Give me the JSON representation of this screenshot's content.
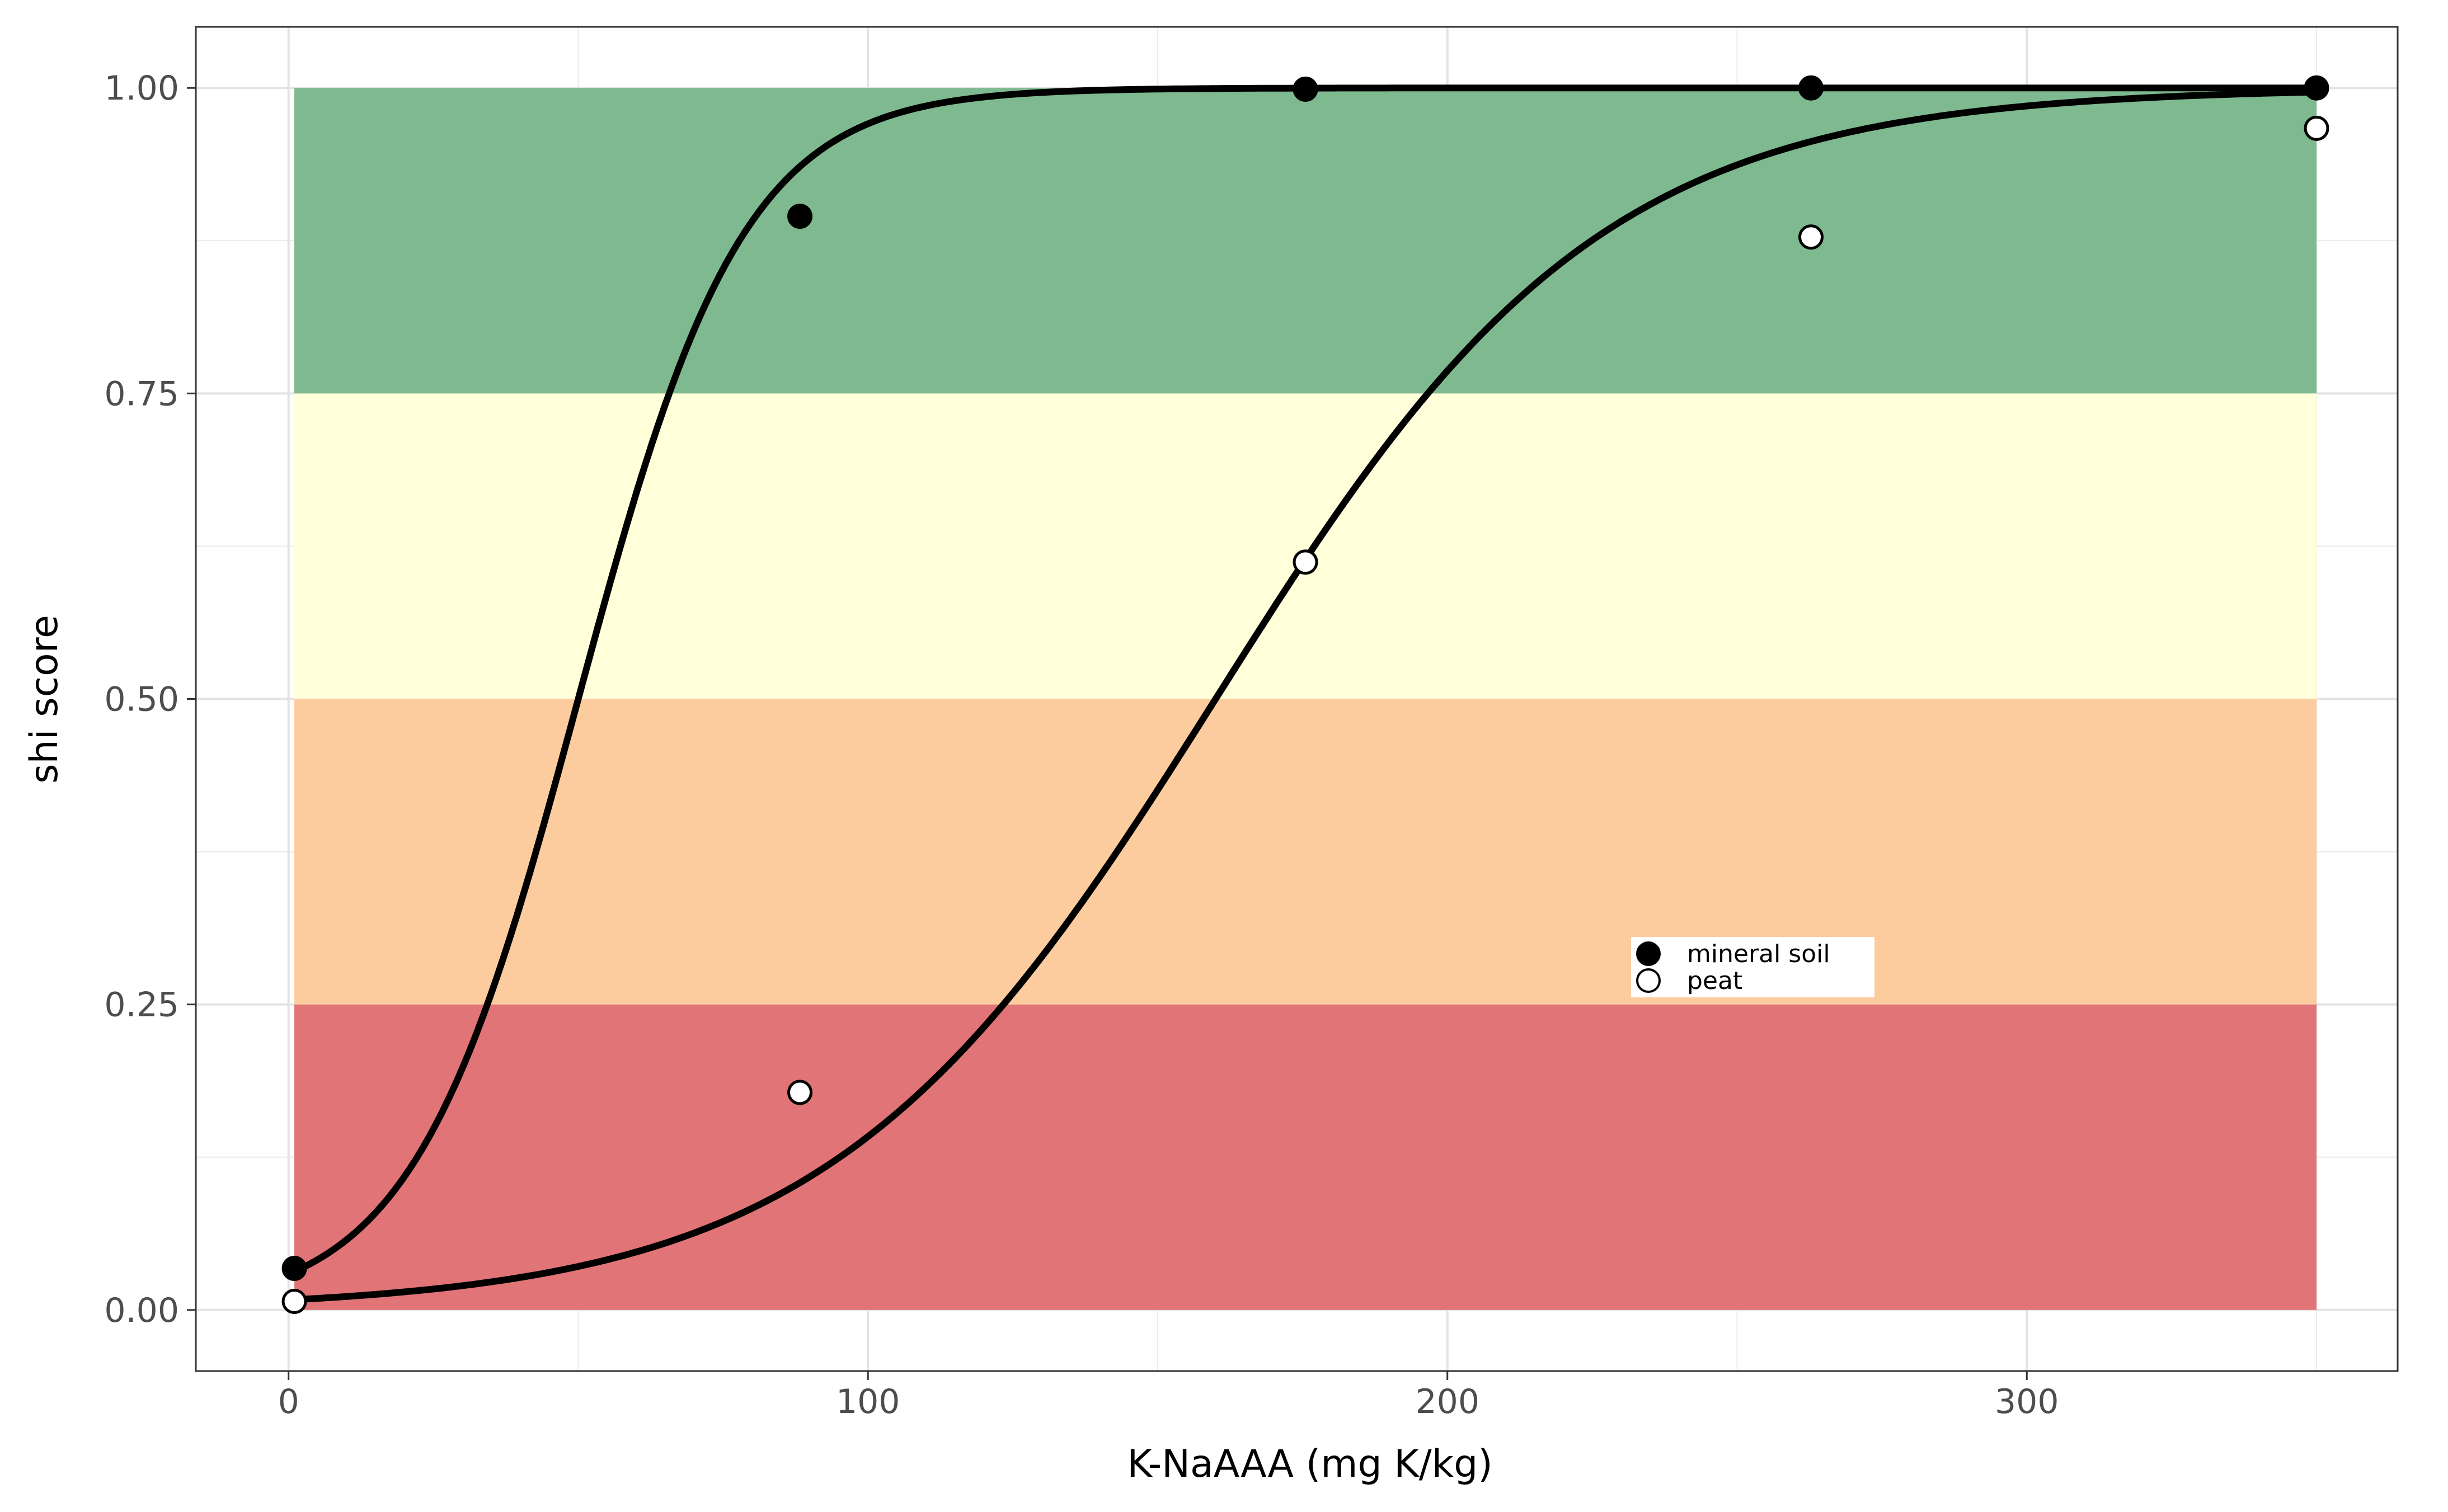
{
  "chart_data": {
    "type": "line",
    "xlabel": "K-NaAAA (mg K/kg)",
    "ylabel": "shi score",
    "xlim": [
      -16,
      364
    ],
    "ylim": [
      -0.05,
      1.05
    ],
    "x_ticks": [
      0,
      100,
      200,
      300
    ],
    "x_tick_labels": [
      "0",
      "100",
      "200",
      "300"
    ],
    "y_ticks": [
      0,
      0.25,
      0.5,
      0.75,
      1.0
    ],
    "y_tick_labels": [
      "0.00",
      "0.25",
      "0.50",
      "0.75",
      "1.00"
    ],
    "grid": true,
    "legend_position": "inside-right",
    "background_bands": [
      {
        "x_range": [
          1,
          350
        ],
        "y_range": [
          0,
          0.25
        ],
        "color": "#E07476"
      },
      {
        "x_range": [
          1,
          350
        ],
        "y_range": [
          0.25,
          0.5
        ],
        "color": "#FCCC9F"
      },
      {
        "x_range": [
          1,
          350
        ],
        "y_range": [
          0.5,
          0.75
        ],
        "color": "#FFFFDA"
      },
      {
        "x_range": [
          1,
          350
        ],
        "y_range": [
          0.75,
          1.0
        ],
        "color": "#7EB98F"
      }
    ],
    "series": [
      {
        "name": "mineral soil",
        "marker": "filled-circle",
        "points": {
          "x": [
            1,
            88.25,
            175.5,
            262.75,
            350
          ],
          "y": [
            0.034,
            0.895,
            0.999,
            1.0,
            1.0
          ]
        },
        "curve": {
          "type": "logistic",
          "k": 0.07,
          "x0": 50
        }
      },
      {
        "name": "peat",
        "marker": "open-circle",
        "points": {
          "x": [
            1,
            88.25,
            175.5,
            262.75,
            350
          ],
          "y": [
            0.007,
            0.178,
            0.612,
            0.878,
            0.967
          ]
        },
        "curve": {
          "type": "logistic",
          "k": 0.03,
          "x0": 160
        }
      }
    ]
  }
}
